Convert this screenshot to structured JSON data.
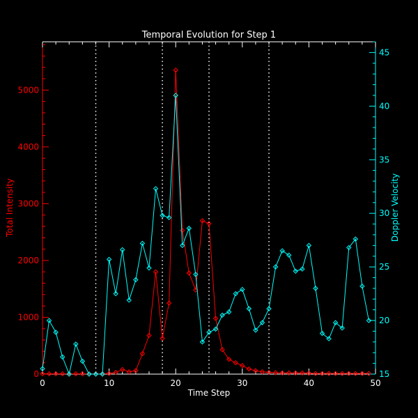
{
  "chart_data": {
    "type": "line",
    "title": "Temporal Evolution for Step 1",
    "xlabel": "Time Step",
    "ylabel_left": "Total Intensity",
    "ylabel_right": "Doppler Velocity",
    "xlim": [
      0,
      50
    ],
    "ylim_left": [
      0,
      5850
    ],
    "ylim_right": [
      15,
      46
    ],
    "x_ticks": [
      0,
      10,
      20,
      30,
      40,
      50
    ],
    "y_ticks_left": [
      0,
      1000,
      2000,
      3000,
      4000,
      5000
    ],
    "y_ticks_right": [
      15,
      20,
      25,
      30,
      35,
      40,
      45
    ],
    "vertical_dotted_lines": [
      8,
      18,
      25,
      34
    ],
    "grid": false,
    "colors": {
      "background": "#000000",
      "axes": "#ffffff",
      "intensity": "#ff0000",
      "velocity": "#00ffff"
    },
    "series": [
      {
        "name": "Total Intensity",
        "axis": "left",
        "x": [
          0,
          1,
          2,
          3,
          4,
          5,
          6,
          7,
          8,
          9,
          10,
          11,
          12,
          13,
          14,
          15,
          16,
          17,
          18,
          19,
          20,
          21,
          22,
          23,
          24,
          25,
          26,
          27,
          28,
          29,
          30,
          31,
          32,
          33,
          34,
          35,
          36,
          37,
          38,
          39,
          40,
          41,
          42,
          43,
          44,
          45,
          46,
          47,
          48,
          49
        ],
        "values": [
          5,
          5,
          5,
          5,
          5,
          5,
          5,
          5,
          5,
          5,
          10,
          30,
          80,
          40,
          60,
          360,
          680,
          1800,
          630,
          1250,
          5350,
          2530,
          1780,
          1480,
          2700,
          2650,
          980,
          430,
          260,
          200,
          150,
          90,
          60,
          40,
          30,
          25,
          20,
          20,
          20,
          20,
          15,
          10,
          10,
          10,
          10,
          10,
          10,
          10,
          10,
          10
        ]
      },
      {
        "name": "Doppler Velocity",
        "axis": "right",
        "x": [
          0,
          1,
          2,
          3,
          4,
          5,
          6,
          7,
          8,
          9,
          10,
          11,
          12,
          13,
          14,
          15,
          16,
          17,
          18,
          19,
          20,
          21,
          22,
          23,
          24,
          25,
          26,
          27,
          28,
          29,
          30,
          31,
          32,
          33,
          34,
          35,
          36,
          37,
          38,
          39,
          40,
          41,
          42,
          43,
          44,
          45,
          46,
          47,
          48,
          49
        ],
        "values": [
          15.5,
          20,
          18.9,
          16.6,
          15,
          17.8,
          16.2,
          13.5,
          13.5,
          15,
          25.7,
          22.5,
          26.6,
          21.9,
          23.8,
          27.2,
          24.9,
          32.3,
          29.8,
          29.6,
          41,
          27,
          28.6,
          24.3,
          18,
          18.9,
          19.2,
          20.5,
          20.8,
          22.5,
          22.9,
          21.1,
          19.1,
          19.8,
          21.1,
          25,
          26.5,
          26.1,
          24.6,
          24.8,
          27,
          23,
          18.8,
          18.3,
          19.8,
          19.3,
          26.8,
          27.6,
          23.2,
          20
        ]
      }
    ]
  }
}
